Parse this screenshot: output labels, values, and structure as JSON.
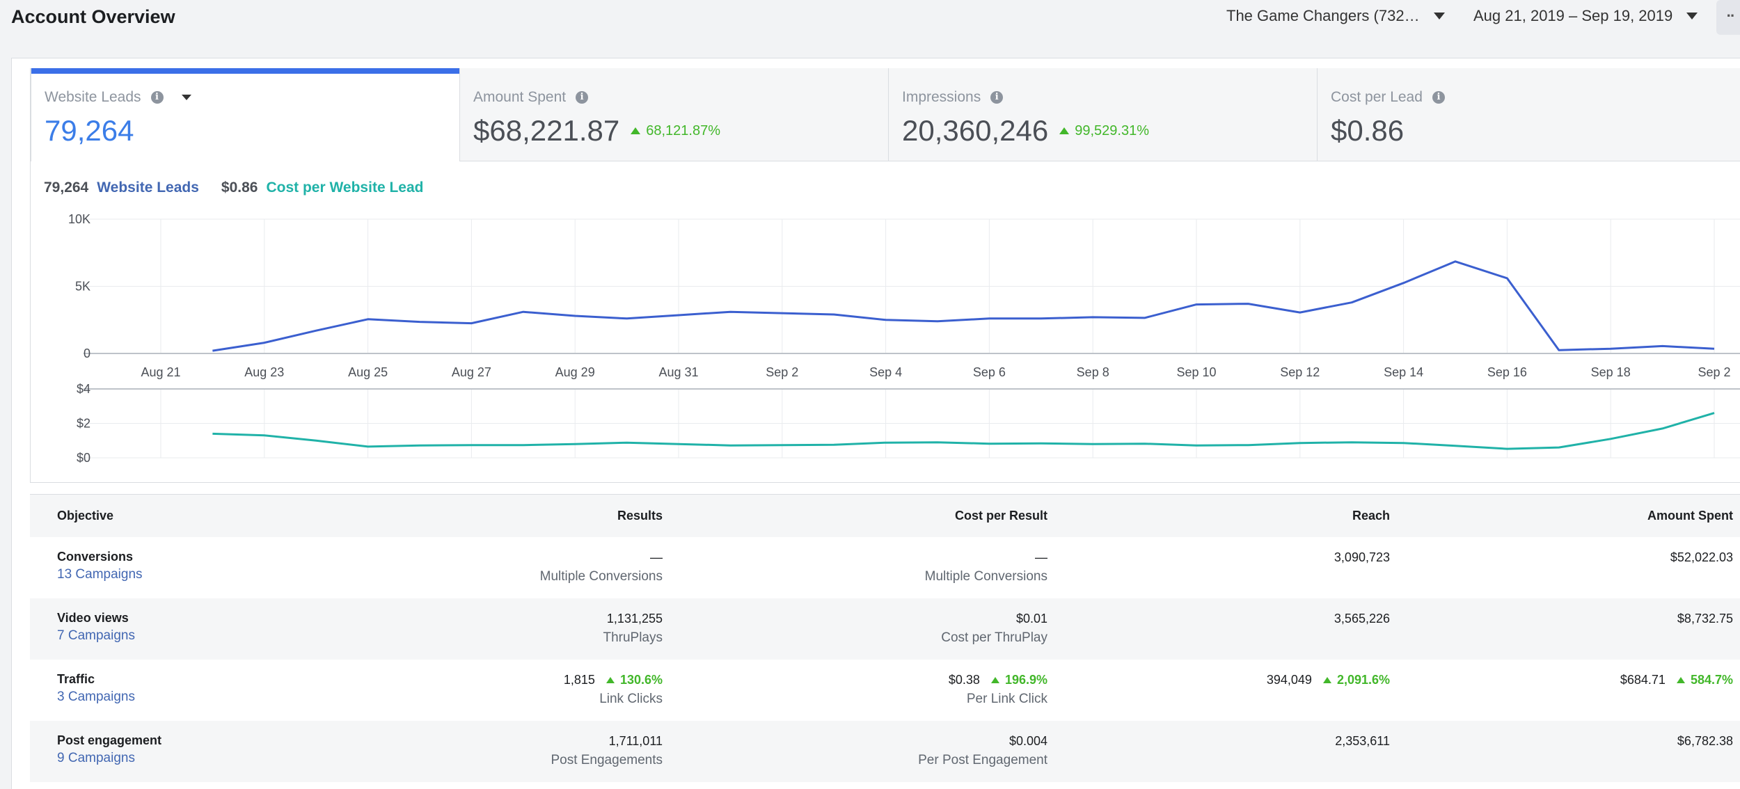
{
  "header": {
    "title": "Account Overview",
    "account": "The Game Changers (732…",
    "date_range": "Aug 21, 2019 – Sep 19, 2019",
    "more": "··"
  },
  "metric_tabs": [
    {
      "label": "Website Leads",
      "value": "79,264",
      "change": ""
    },
    {
      "label": "Amount Spent",
      "value": "$68,221.87",
      "change": "68,121.87%"
    },
    {
      "label": "Impressions",
      "value": "20,360,246",
      "change": "99,529.31%"
    },
    {
      "label": "Cost per Lead",
      "value": "$0.86",
      "change": ""
    }
  ],
  "legend": {
    "leads_value": "79,264",
    "leads_label": "Website Leads",
    "cost_value": "$0.86",
    "cost_label": "Cost per Website Lead"
  },
  "chart_data": [
    {
      "type": "line",
      "title": "",
      "ylabel": "",
      "y_tick_labels": [
        "10K",
        "5K",
        "0"
      ],
      "ylim": [
        0,
        10000
      ],
      "x_tick_labels": [
        "Aug 21",
        "Aug 23",
        "Aug 25",
        "Aug 27",
        "Aug 29",
        "Aug 31",
        "Sep 2",
        "Sep 4",
        "Sep 6",
        "Sep 8",
        "Sep 10",
        "Sep 12",
        "Sep 14",
        "Sep 16",
        "Sep 18",
        "Sep 2"
      ],
      "x": [
        "Aug 22",
        "Aug 23",
        "Aug 24",
        "Aug 25",
        "Aug 26",
        "Aug 27",
        "Aug 28",
        "Aug 29",
        "Aug 30",
        "Aug 31",
        "Sep 1",
        "Sep 2",
        "Sep 3",
        "Sep 4",
        "Sep 5",
        "Sep 6",
        "Sep 7",
        "Sep 8",
        "Sep 9",
        "Sep 10",
        "Sep 11",
        "Sep 12",
        "Sep 13",
        "Sep 14",
        "Sep 15",
        "Sep 16",
        "Sep 17",
        "Sep 18",
        "Sep 19",
        "Sep 20"
      ],
      "series": [
        {
          "name": "Website Leads",
          "color": "#3b5fcf",
          "values": [
            200,
            800,
            1700,
            2550,
            2350,
            2250,
            3100,
            2800,
            2600,
            2850,
            3100,
            3000,
            2900,
            2500,
            2400,
            2600,
            2600,
            2700,
            2650,
            3650,
            3700,
            3050,
            3800,
            5250,
            6850,
            5600,
            250,
            350,
            550,
            350
          ]
        }
      ],
      "grid": true
    },
    {
      "type": "line",
      "title": "",
      "ylabel": "",
      "y_tick_labels": [
        "$4",
        "$2",
        "$0"
      ],
      "ylim": [
        0,
        4
      ],
      "x": [
        "Aug 22",
        "Aug 23",
        "Aug 24",
        "Aug 25",
        "Aug 26",
        "Aug 27",
        "Aug 28",
        "Aug 29",
        "Aug 30",
        "Aug 31",
        "Sep 1",
        "Sep 2",
        "Sep 3",
        "Sep 4",
        "Sep 5",
        "Sep 6",
        "Sep 7",
        "Sep 8",
        "Sep 9",
        "Sep 10",
        "Sep 11",
        "Sep 12",
        "Sep 13",
        "Sep 14",
        "Sep 15",
        "Sep 16",
        "Sep 17",
        "Sep 18",
        "Sep 19",
        "Sep 20"
      ],
      "series": [
        {
          "name": "Cost per Website Lead",
          "color": "#20b2a8",
          "values": [
            1.4,
            1.3,
            1.0,
            0.65,
            0.72,
            0.74,
            0.74,
            0.8,
            0.88,
            0.8,
            0.72,
            0.74,
            0.76,
            0.88,
            0.9,
            0.82,
            0.84,
            0.8,
            0.82,
            0.72,
            0.74,
            0.86,
            0.9,
            0.86,
            0.7,
            0.52,
            0.6,
            1.1,
            1.7,
            2.6
          ]
        }
      ],
      "grid": true
    }
  ],
  "table": {
    "headers": [
      "Objective",
      "Results",
      "Cost per Result",
      "Reach",
      "Amount Spent"
    ],
    "rows": [
      {
        "objective": "Conversions",
        "campaigns": "13 Campaigns",
        "results": "—",
        "results_sub": "Multiple Conversions",
        "results_change": "",
        "cpr": "—",
        "cpr_sub": "Multiple Conversions",
        "cpr_change": "",
        "reach": "3,090,723",
        "reach_change": "",
        "spent": "$52,022.03",
        "spent_change": ""
      },
      {
        "objective": "Video views",
        "campaigns": "7 Campaigns",
        "results": "1,131,255",
        "results_sub": "ThruPlays",
        "results_change": "",
        "cpr": "$0.01",
        "cpr_sub": "Cost per ThruPlay",
        "cpr_change": "",
        "reach": "3,565,226",
        "reach_change": "",
        "spent": "$8,732.75",
        "spent_change": ""
      },
      {
        "objective": "Traffic",
        "campaigns": "3 Campaigns",
        "results": "1,815",
        "results_sub": "Link Clicks",
        "results_change": "130.6%",
        "cpr": "$0.38",
        "cpr_sub": "Per Link Click",
        "cpr_change": "196.9%",
        "reach": "394,049",
        "reach_change": "2,091.6%",
        "spent": "$684.71",
        "spent_change": "584.7%"
      },
      {
        "objective": "Post engagement",
        "campaigns": "9 Campaigns",
        "results": "1,711,011",
        "results_sub": "Post Engagements",
        "results_change": "",
        "cpr": "$0.004",
        "cpr_sub": "Per Post Engagement",
        "cpr_change": "",
        "reach": "2,353,611",
        "reach_change": "",
        "spent": "$6,782.38",
        "spent_change": ""
      }
    ]
  }
}
